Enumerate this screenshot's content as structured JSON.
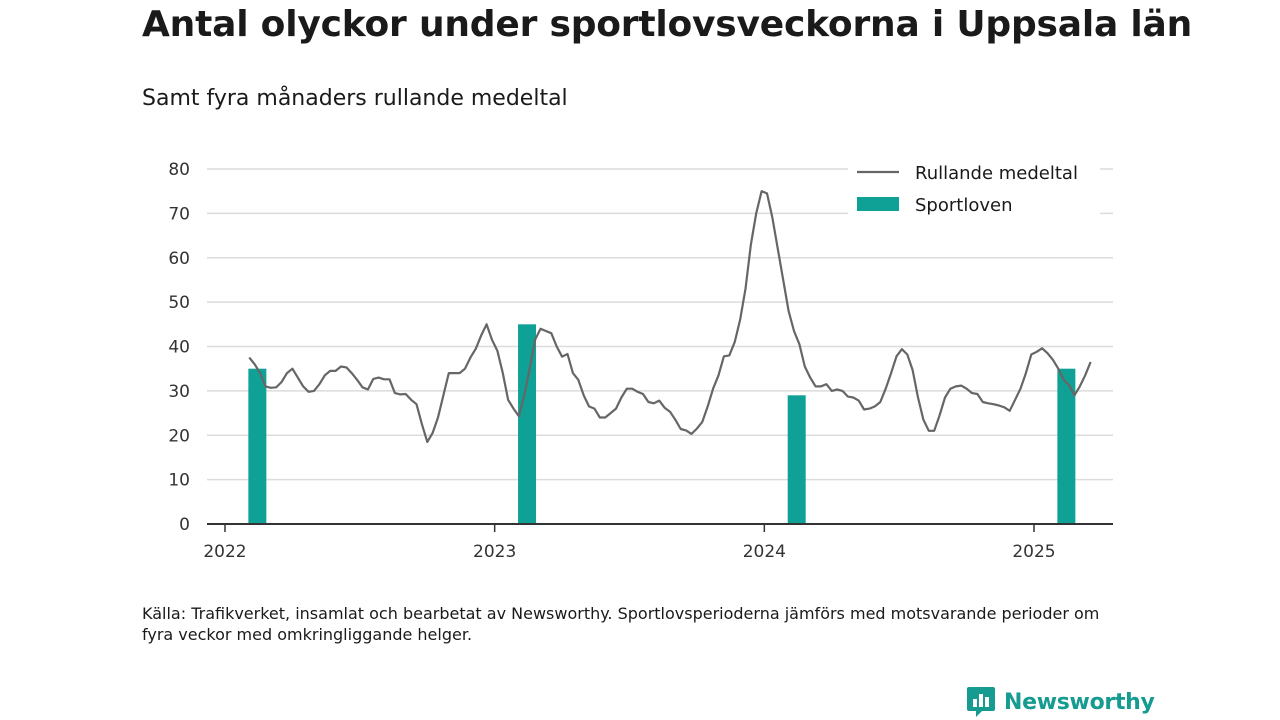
{
  "title": "Antal olyckor under sportlovsveckorna i Uppsala län",
  "subtitle": "Samt fyra månaders rullande medeltal",
  "source": "Källa: Trafikverket, insamlat och bearbetat av Newsworthy. Sportlovsperioderna jämförs med motsvarande perioder om fyra veckor med omkringliggande helger.",
  "logo_text": "Newsworthy",
  "colors": {
    "bar": "#10a196",
    "line": "#666666",
    "grid": "#dcdcdc",
    "axis": "#333333",
    "logo": "#169b91"
  },
  "chart_data": {
    "type": "bar",
    "xlim": [
      2022.0,
      2025.3
    ],
    "ylim": [
      0,
      80
    ],
    "y_ticks": [
      0,
      10,
      20,
      30,
      40,
      50,
      60,
      70,
      80
    ],
    "x_ticks": [
      {
        "value": 2022.0,
        "label": "2022"
      },
      {
        "value": 2023.0,
        "label": "2023"
      },
      {
        "value": 2024.0,
        "label": "2024"
      },
      {
        "value": 2025.0,
        "label": "2025"
      }
    ],
    "legend": {
      "position": "top-right",
      "entries": [
        "Rullande medeltal",
        "Sportloven"
      ]
    },
    "series": [
      {
        "name": "Sportloven",
        "type": "bar",
        "x": [
          2022.12,
          2023.12,
          2024.12,
          2025.12
        ],
        "values": [
          35,
          45,
          29,
          35
        ]
      },
      {
        "name": "Rullande medeltal",
        "type": "line",
        "points": [
          [
            2022.09,
            37.5
          ],
          [
            2022.11,
            36
          ],
          [
            2022.13,
            34
          ],
          [
            2022.15,
            31
          ],
          [
            2022.17,
            30.7
          ],
          [
            2022.19,
            30.8
          ],
          [
            2022.21,
            32
          ],
          [
            2022.23,
            34
          ],
          [
            2022.25,
            35
          ],
          [
            2022.27,
            33
          ],
          [
            2022.29,
            31
          ],
          [
            2022.31,
            29.8
          ],
          [
            2022.33,
            30
          ],
          [
            2022.35,
            31.5
          ],
          [
            2022.37,
            33.5
          ],
          [
            2022.39,
            34.5
          ],
          [
            2022.41,
            34.5
          ],
          [
            2022.43,
            35.5
          ],
          [
            2022.45,
            35.3
          ],
          [
            2022.47,
            34
          ],
          [
            2022.49,
            32.5
          ],
          [
            2022.51,
            30.8
          ],
          [
            2022.53,
            30.3
          ],
          [
            2022.55,
            32.7
          ],
          [
            2022.57,
            33
          ],
          [
            2022.59,
            32.6
          ],
          [
            2022.61,
            32.6
          ],
          [
            2022.63,
            29.5
          ],
          [
            2022.65,
            29.2
          ],
          [
            2022.67,
            29.3
          ],
          [
            2022.69,
            28
          ],
          [
            2022.71,
            27
          ],
          [
            2022.73,
            22.5
          ],
          [
            2022.75,
            18.5
          ],
          [
            2022.77,
            20.5
          ],
          [
            2022.79,
            24
          ],
          [
            2022.81,
            29
          ],
          [
            2022.83,
            34
          ],
          [
            2022.85,
            34
          ],
          [
            2022.87,
            34
          ],
          [
            2022.89,
            35
          ],
          [
            2022.91,
            37.5
          ],
          [
            2022.93,
            39.5
          ],
          [
            2022.95,
            42.5
          ],
          [
            2022.97,
            45
          ],
          [
            2022.99,
            41.5
          ],
          [
            2023.01,
            39
          ],
          [
            2023.03,
            34
          ],
          [
            2023.05,
            28
          ],
          [
            2023.07,
            26
          ],
          [
            2023.09,
            24.3
          ],
          [
            2023.11,
            29
          ],
          [
            2023.13,
            35
          ],
          [
            2023.15,
            41.5
          ],
          [
            2023.17,
            44
          ],
          [
            2023.19,
            43.5
          ],
          [
            2023.21,
            43
          ],
          [
            2023.23,
            40
          ],
          [
            2023.25,
            37.7
          ],
          [
            2023.27,
            38.3
          ],
          [
            2023.29,
            34
          ],
          [
            2023.31,
            32.5
          ],
          [
            2023.33,
            29
          ],
          [
            2023.35,
            26.5
          ],
          [
            2023.37,
            26
          ],
          [
            2023.39,
            24
          ],
          [
            2023.41,
            24
          ],
          [
            2023.43,
            25
          ],
          [
            2023.45,
            26
          ],
          [
            2023.47,
            28.5
          ],
          [
            2023.49,
            30.5
          ],
          [
            2023.51,
            30.5
          ],
          [
            2023.53,
            29.8
          ],
          [
            2023.55,
            29.3
          ],
          [
            2023.57,
            27.5
          ],
          [
            2023.59,
            27.2
          ],
          [
            2023.61,
            27.8
          ],
          [
            2023.63,
            26.2
          ],
          [
            2023.65,
            25.3
          ],
          [
            2023.67,
            23.5
          ],
          [
            2023.69,
            21.4
          ],
          [
            2023.71,
            21.1
          ],
          [
            2023.73,
            20.3
          ],
          [
            2023.75,
            21.5
          ],
          [
            2023.77,
            23
          ],
          [
            2023.79,
            26.5
          ],
          [
            2023.81,
            30.5
          ],
          [
            2023.83,
            33.5
          ],
          [
            2023.85,
            37.8
          ],
          [
            2023.87,
            38
          ],
          [
            2023.89,
            41
          ],
          [
            2023.91,
            46
          ],
          [
            2023.93,
            53
          ],
          [
            2023.95,
            63
          ],
          [
            2023.97,
            70
          ],
          [
            2023.99,
            75
          ],
          [
            2024.01,
            74.5
          ],
          [
            2024.03,
            69
          ],
          [
            2024.05,
            62
          ],
          [
            2024.07,
            55
          ],
          [
            2024.09,
            48
          ],
          [
            2024.11,
            43.5
          ],
          [
            2024.13,
            40.5
          ],
          [
            2024.15,
            35.5
          ],
          [
            2024.17,
            33
          ],
          [
            2024.19,
            31
          ],
          [
            2024.21,
            31
          ],
          [
            2024.23,
            31.5
          ],
          [
            2024.25,
            30
          ],
          [
            2024.27,
            30.3
          ],
          [
            2024.29,
            30
          ],
          [
            2024.31,
            28.7
          ],
          [
            2024.33,
            28.5
          ],
          [
            2024.35,
            27.8
          ],
          [
            2024.37,
            25.8
          ],
          [
            2024.39,
            26
          ],
          [
            2024.41,
            26.5
          ],
          [
            2024.43,
            27.5
          ],
          [
            2024.45,
            30.5
          ],
          [
            2024.47,
            34
          ],
          [
            2024.49,
            37.8
          ],
          [
            2024.51,
            39.4
          ],
          [
            2024.53,
            38.2
          ],
          [
            2024.55,
            34.7
          ],
          [
            2024.57,
            28.5
          ],
          [
            2024.59,
            23.5
          ],
          [
            2024.61,
            21
          ],
          [
            2024.63,
            21
          ],
          [
            2024.65,
            24.5
          ],
          [
            2024.67,
            28.5
          ],
          [
            2024.69,
            30.5
          ],
          [
            2024.71,
            31
          ],
          [
            2024.73,
            31.2
          ],
          [
            2024.75,
            30.5
          ],
          [
            2024.77,
            29.5
          ],
          [
            2024.79,
            29.3
          ],
          [
            2024.81,
            27.5
          ],
          [
            2024.83,
            27.2
          ],
          [
            2024.85,
            27
          ],
          [
            2024.87,
            26.7
          ],
          [
            2024.89,
            26.3
          ],
          [
            2024.91,
            25.5
          ],
          [
            2024.93,
            28
          ],
          [
            2024.95,
            30.5
          ],
          [
            2024.97,
            34
          ],
          [
            2024.99,
            38.2
          ],
          [
            2025.01,
            38.8
          ],
          [
            2025.03,
            39.6
          ],
          [
            2025.05,
            38.5
          ],
          [
            2025.07,
            37
          ],
          [
            2025.09,
            35
          ],
          [
            2025.11,
            32.5
          ],
          [
            2025.13,
            31.3
          ],
          [
            2025.15,
            29
          ],
          [
            2025.17,
            31
          ],
          [
            2025.19,
            33.5
          ],
          [
            2025.21,
            36.5
          ]
        ]
      }
    ]
  }
}
